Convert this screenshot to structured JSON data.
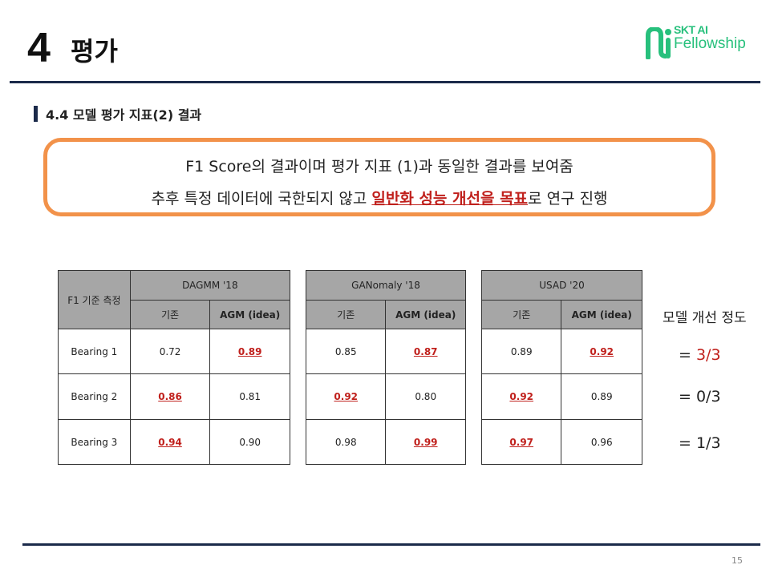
{
  "header": {
    "number": "4",
    "title": "평가"
  },
  "logo": {
    "line1": "SKT AI",
    "line2": "Fellowship",
    "color": "#27c07c"
  },
  "section": {
    "title": "4.4 모델 평가 지표(2) 결과"
  },
  "callout": {
    "line1": "F1 Score의 결과이며 평가 지표 (1)과 동일한 결과를 보여줌",
    "line2_pre": "추후 특정 데이터에 국한되지 않고 ",
    "line2_hl": "일반화 성능 개선을 목표",
    "line2_post": "로 연구 진행",
    "border_color": "#f2924a",
    "highlight_color": "#c0201c"
  },
  "table": {
    "corner_label": "F1 기준 측정",
    "sub_base": "기존",
    "sub_agm": "AGM (idea)",
    "models": [
      "DAGMM '18",
      "GANomaly '18",
      "USAD '20"
    ],
    "rows": [
      {
        "label": "Bearing 1",
        "dagmm": [
          "0.72",
          "0.89"
        ],
        "ganomaly": [
          "0.85",
          "0.87"
        ],
        "usad": [
          "0.89",
          "0.92"
        ]
      },
      {
        "label": "Bearing 2",
        "dagmm": [
          "0.86",
          "0.81"
        ],
        "ganomaly": [
          "0.92",
          "0.80"
        ],
        "usad": [
          "0.92",
          "0.89"
        ]
      },
      {
        "label": "Bearing 3",
        "dagmm": [
          "0.94",
          "0.90"
        ],
        "ganomaly": [
          "0.98",
          "0.99"
        ],
        "usad": [
          "0.97",
          "0.96"
        ]
      }
    ]
  },
  "improvement": {
    "title": "모델 개선 정도",
    "prefix": "= ",
    "values": [
      "3/3",
      "0/3",
      "1/3"
    ]
  },
  "page_number": "15"
}
